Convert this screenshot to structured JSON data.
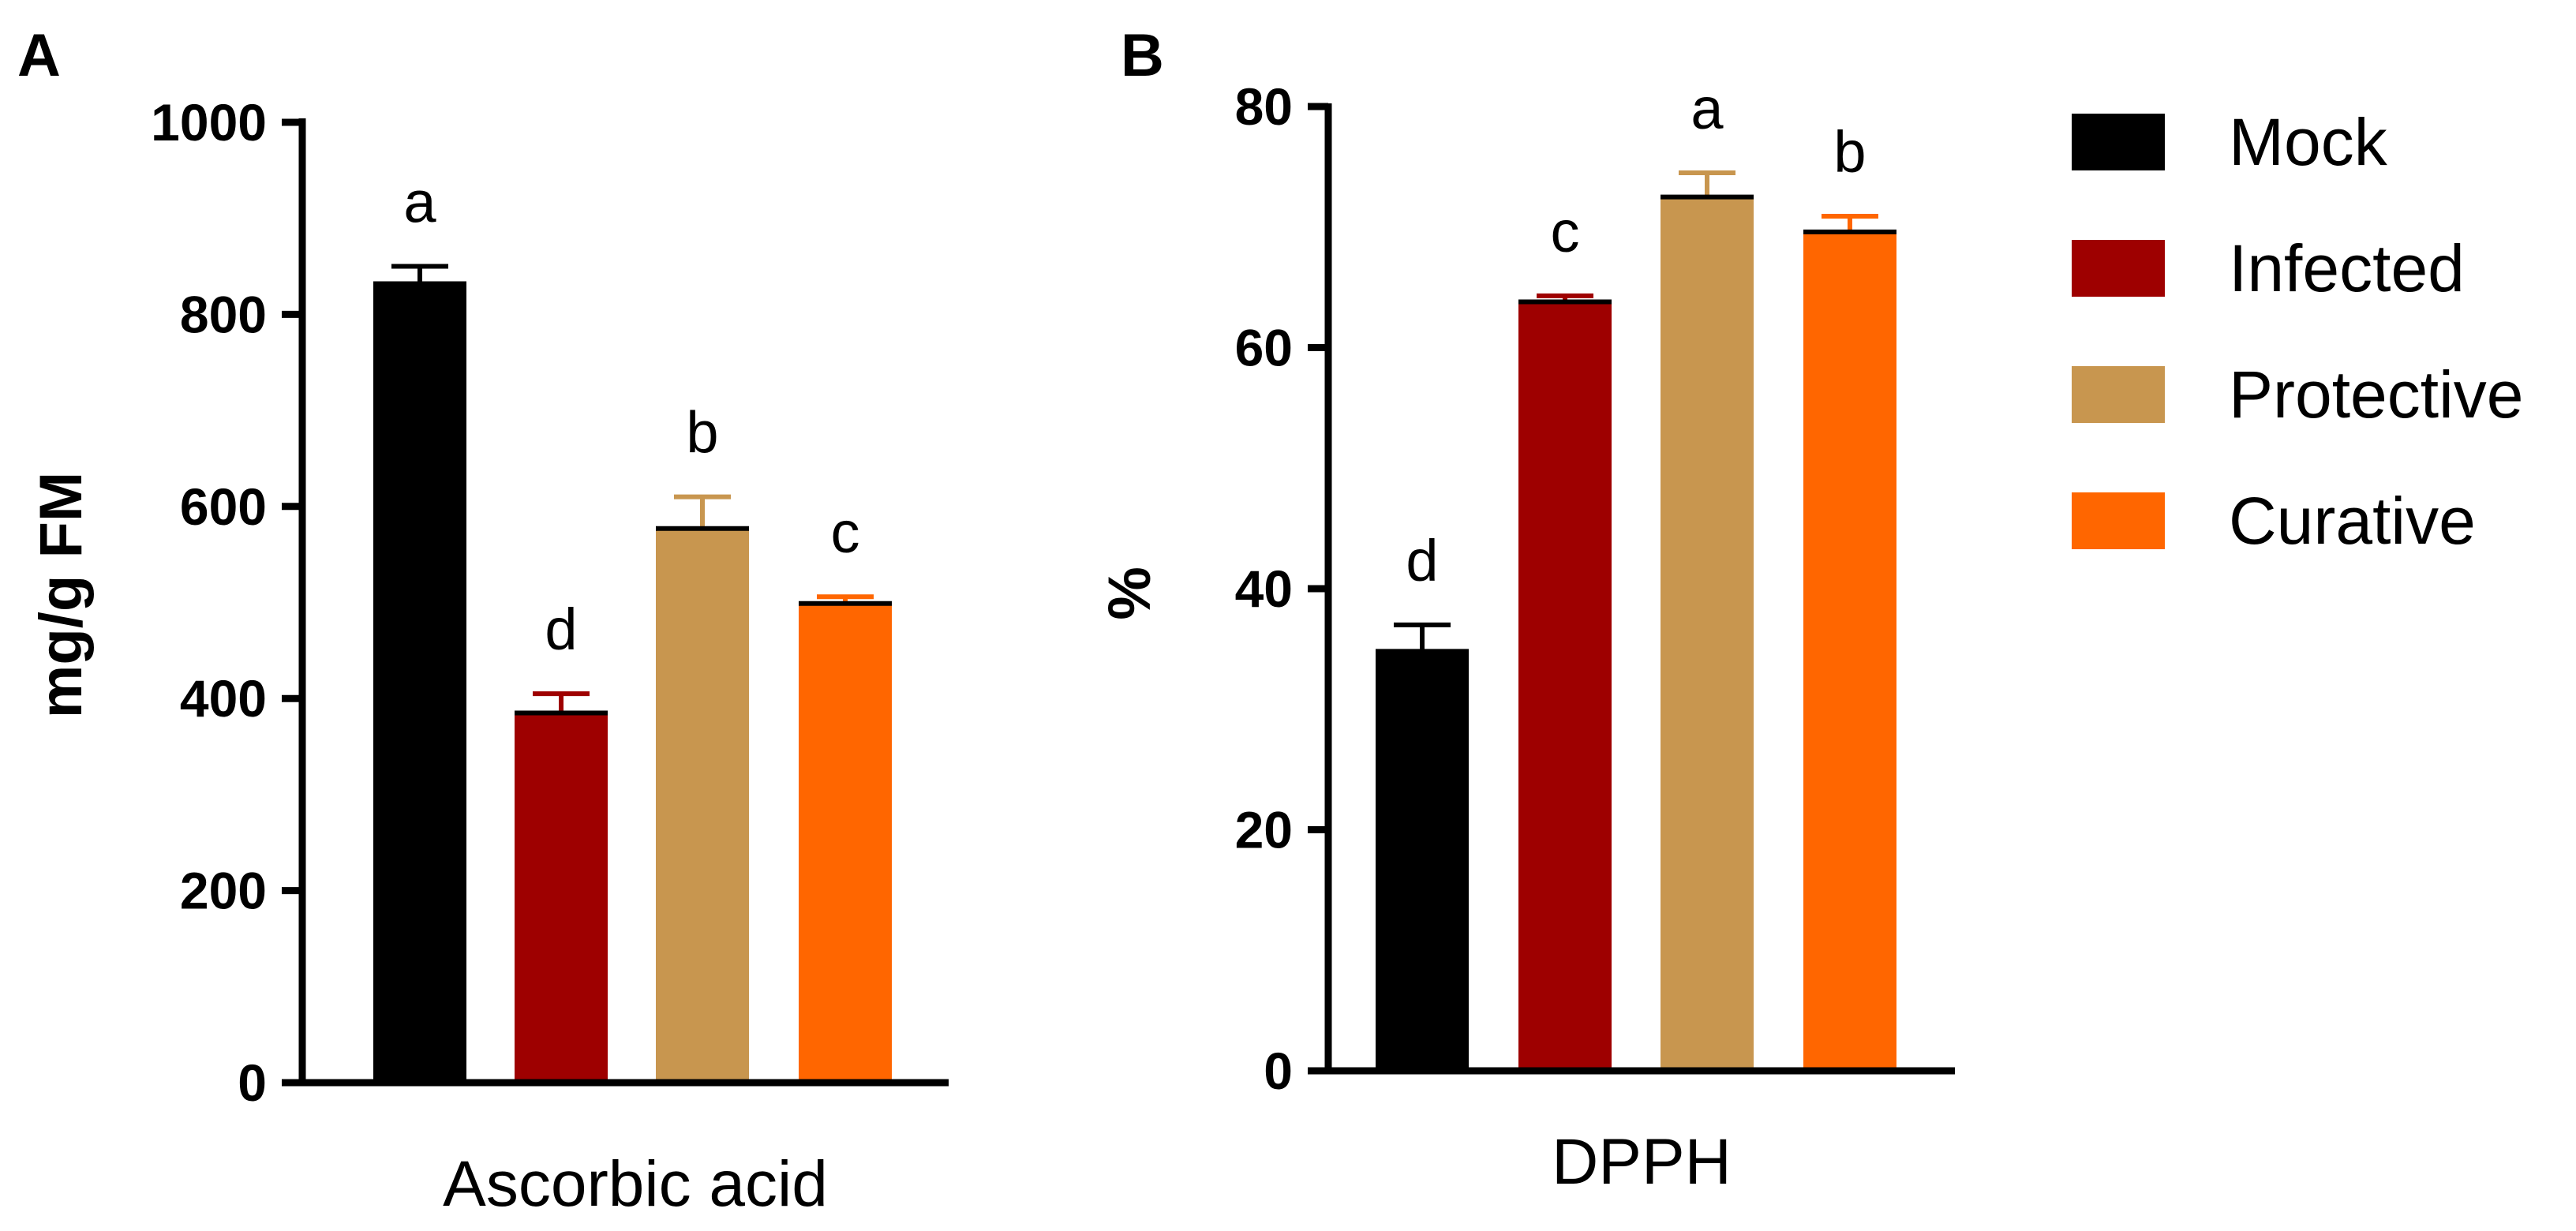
{
  "chart_data": [
    {
      "type": "bar",
      "panel_label": "A",
      "title": "",
      "xlabel": "Ascorbic acid",
      "ylabel": "mg/g FM",
      "ylim": [
        0,
        1000
      ],
      "yticks": [
        0,
        200,
        400,
        600,
        800,
        1000
      ],
      "ytick_labels": [
        "0",
        "200",
        "400",
        "600",
        "800",
        "1000"
      ],
      "grid": false,
      "categories": [
        "Mock",
        "Infected",
        "Protective",
        "Curative"
      ],
      "values": [
        832,
        385,
        577,
        499
      ],
      "errors": [
        18,
        20,
        33,
        7
      ],
      "significance_letters": [
        "a",
        "d",
        "b",
        "c"
      ]
    },
    {
      "type": "bar",
      "panel_label": "B",
      "title": "",
      "xlabel": "DPPH",
      "ylabel": "%",
      "ylim": [
        0,
        80
      ],
      "yticks": [
        0,
        20,
        40,
        60,
        80
      ],
      "ytick_labels": [
        "0",
        "20",
        "40",
        "60",
        "80"
      ],
      "grid": false,
      "categories": [
        "Mock",
        "Infected",
        "Protective",
        "Curative"
      ],
      "values": [
        34.8,
        63.8,
        72.5,
        69.6
      ],
      "errors": [
        2.2,
        0.5,
        2.0,
        1.3
      ],
      "significance_letters": [
        "d",
        "c",
        "a",
        "b"
      ]
    }
  ],
  "legend": {
    "position": "right",
    "entries": [
      {
        "label": "Mock",
        "color": "#000000"
      },
      {
        "label": "Infected",
        "color": "#9e0000"
      },
      {
        "label": "Protective",
        "color": "#c8964f"
      },
      {
        "label": "Curative",
        "color": "#ff6600"
      }
    ]
  }
}
